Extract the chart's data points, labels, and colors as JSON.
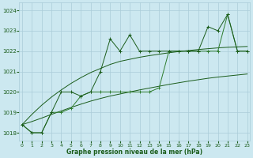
{
  "xlabel": "Graphe pression niveau de la mer (hPa)",
  "bg_color": "#cce8f0",
  "grid_color": "#aaccd8",
  "line_color_dark": "#1a5c1a",
  "line_color_mid": "#2e7d2e",
  "x_values": [
    0,
    1,
    2,
    3,
    4,
    5,
    6,
    7,
    8,
    9,
    10,
    11,
    12,
    13,
    14,
    15,
    16,
    17,
    18,
    19,
    20,
    21,
    22,
    23
  ],
  "series_jagged": [
    1018.4,
    1018.0,
    1018.0,
    1019.0,
    1020.0,
    1020.0,
    1019.8,
    1020.0,
    1021.0,
    1022.6,
    1022.0,
    1022.8,
    1022.0,
    1022.0,
    1022.0,
    1022.0,
    1022.0,
    1022.0,
    1022.0,
    1023.2,
    1023.0,
    1023.8,
    1022.0,
    1022.0
  ],
  "series_smooth": [
    1018.4,
    1018.0,
    1018.0,
    1019.0,
    1019.0,
    1019.2,
    1019.8,
    1020.0,
    1020.0,
    1020.0,
    1020.0,
    1020.0,
    1020.0,
    1020.0,
    1020.2,
    1022.0,
    1022.0,
    1022.0,
    1022.0,
    1022.0,
    1022.0,
    1023.8,
    1022.0,
    1022.0
  ],
  "trend_high": [
    1018.4,
    1018.9,
    1019.35,
    1019.75,
    1020.1,
    1020.42,
    1020.7,
    1020.95,
    1021.15,
    1021.35,
    1021.5,
    1021.6,
    1021.7,
    1021.78,
    1021.85,
    1021.92,
    1021.98,
    1022.03,
    1022.08,
    1022.12,
    1022.16,
    1022.19,
    1022.21,
    1022.23
  ],
  "trend_low": [
    1018.4,
    1018.55,
    1018.72,
    1018.9,
    1019.07,
    1019.24,
    1019.4,
    1019.55,
    1019.68,
    1019.8,
    1019.9,
    1020.0,
    1020.1,
    1020.19,
    1020.28,
    1020.37,
    1020.45,
    1020.53,
    1020.6,
    1020.67,
    1020.73,
    1020.78,
    1020.83,
    1020.88
  ],
  "ylim": [
    1017.6,
    1024.4
  ],
  "yticks": [
    1018,
    1019,
    1020,
    1021,
    1022,
    1023,
    1024
  ],
  "xticks": [
    0,
    1,
    2,
    3,
    4,
    5,
    6,
    7,
    8,
    9,
    10,
    11,
    12,
    13,
    14,
    15,
    16,
    17,
    18,
    19,
    20,
    21,
    22,
    23
  ],
  "figsize": [
    3.2,
    2.0
  ],
  "dpi": 100
}
